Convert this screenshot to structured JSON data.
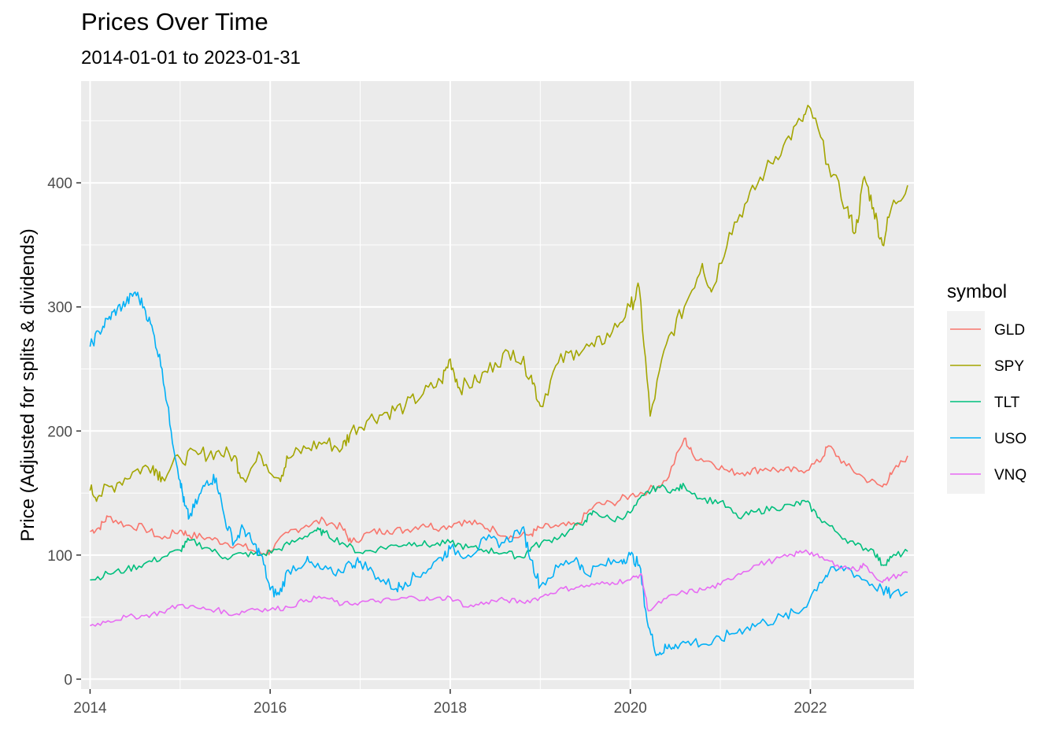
{
  "chart_data": {
    "type": "line",
    "title": "Prices Over Time",
    "subtitle": "2014-01-01 to 2023-01-31",
    "xlabel": "",
    "ylabel": "Price (Adjusted for splits & dividends)",
    "xlim": [
      2013.9,
      2023.15
    ],
    "ylim": [
      -8,
      482
    ],
    "x_ticks": [
      2014,
      2016,
      2018,
      2020,
      2022
    ],
    "y_ticks": [
      0,
      100,
      200,
      300,
      400
    ],
    "grid": true,
    "legend": {
      "title": "symbol",
      "placement": "right"
    },
    "series": [
      {
        "name": "GLD",
        "color": "#F8766D",
        "x": [
          2014.0,
          2014.1,
          2014.2,
          2014.4,
          2014.6,
          2014.8,
          2015.0,
          2015.1,
          2015.3,
          2015.5,
          2015.7,
          2015.9,
          2016.0,
          2016.2,
          2016.4,
          2016.6,
          2016.8,
          2016.9,
          2017.1,
          2017.3,
          2017.5,
          2017.7,
          2017.9,
          2018.1,
          2018.3,
          2018.5,
          2018.7,
          2018.9,
          2019.0,
          2019.2,
          2019.4,
          2019.6,
          2019.8,
          2020.0,
          2020.2,
          2020.4,
          2020.6,
          2020.7,
          2020.9,
          2021.1,
          2021.3,
          2021.5,
          2021.7,
          2021.9,
          2022.1,
          2022.2,
          2022.4,
          2022.6,
          2022.8,
          2022.9,
          2023.08
        ],
        "y": [
          119,
          122,
          131,
          124,
          122,
          113,
          120,
          116,
          114,
          110,
          107,
          101,
          103,
          118,
          124,
          128,
          122,
          110,
          118,
          120,
          120,
          125,
          122,
          127,
          125,
          120,
          114,
          117,
          122,
          123,
          124,
          140,
          142,
          148,
          152,
          160,
          194,
          180,
          175,
          167,
          167,
          170,
          168,
          168,
          175,
          188,
          172,
          162,
          155,
          165,
          180
        ]
      },
      {
        "name": "SPY",
        "color": "#A3A500",
        "x": [
          2014.0,
          2014.1,
          2014.3,
          2014.5,
          2014.7,
          2014.8,
          2015.0,
          2015.2,
          2015.4,
          2015.6,
          2015.7,
          2015.9,
          2016.1,
          2016.2,
          2016.4,
          2016.6,
          2016.8,
          2016.9,
          2017.1,
          2017.3,
          2017.5,
          2017.7,
          2017.9,
          2018.0,
          2018.1,
          2018.3,
          2018.5,
          2018.7,
          2018.9,
          2019.0,
          2019.2,
          2019.4,
          2019.6,
          2019.8,
          2020.0,
          2020.1,
          2020.22,
          2020.4,
          2020.6,
          2020.8,
          2020.9,
          2021.1,
          2021.3,
          2021.5,
          2021.7,
          2021.9,
          2022.0,
          2022.2,
          2022.4,
          2022.5,
          2022.6,
          2022.7,
          2022.8,
          2022.9,
          2023.08
        ],
        "y": [
          152,
          148,
          158,
          168,
          172,
          163,
          178,
          181,
          183,
          180,
          162,
          180,
          162,
          178,
          186,
          191,
          186,
          200,
          210,
          215,
          220,
          230,
          240,
          258,
          235,
          240,
          255,
          265,
          245,
          220,
          255,
          265,
          268,
          280,
          300,
          315,
          212,
          270,
          300,
          335,
          312,
          360,
          385,
          410,
          430,
          450,
          460,
          415,
          380,
          360,
          405,
          380,
          350,
          380,
          398
        ]
      },
      {
        "name": "TLT",
        "color": "#00BF7D",
        "x": [
          2014.0,
          2014.2,
          2014.4,
          2014.6,
          2014.8,
          2015.0,
          2015.1,
          2015.3,
          2015.5,
          2015.7,
          2015.9,
          2016.1,
          2016.3,
          2016.5,
          2016.6,
          2016.8,
          2017.0,
          2017.2,
          2017.4,
          2017.6,
          2017.8,
          2018.0,
          2018.2,
          2018.4,
          2018.6,
          2018.8,
          2018.9,
          2019.1,
          2019.3,
          2019.5,
          2019.6,
          2019.8,
          2020.0,
          2020.15,
          2020.3,
          2020.5,
          2020.6,
          2020.8,
          2021.0,
          2021.2,
          2021.4,
          2021.6,
          2021.8,
          2021.95,
          2022.1,
          2022.3,
          2022.5,
          2022.7,
          2022.8,
          2022.9,
          2023.08
        ],
        "y": [
          80,
          85,
          88,
          93,
          98,
          104,
          112,
          106,
          98,
          101,
          100,
          105,
          112,
          120,
          118,
          110,
          102,
          105,
          108,
          110,
          108,
          110,
          106,
          104,
          102,
          98,
          106,
          112,
          118,
          128,
          135,
          128,
          134,
          148,
          155,
          152,
          156,
          145,
          143,
          130,
          135,
          138,
          140,
          143,
          130,
          118,
          108,
          104,
          92,
          98,
          103
        ]
      },
      {
        "name": "USO",
        "color": "#00B0F6",
        "x": [
          2014.0,
          2014.1,
          2014.2,
          2014.3,
          2014.4,
          2014.5,
          2014.6,
          2014.7,
          2014.8,
          2014.9,
          2015.0,
          2015.05,
          2015.1,
          2015.2,
          2015.3,
          2015.4,
          2015.5,
          2015.6,
          2015.7,
          2015.8,
          2015.9,
          2016.0,
          2016.1,
          2016.2,
          2016.4,
          2016.5,
          2016.7,
          2016.9,
          2017.0,
          2017.2,
          2017.4,
          2017.5,
          2017.7,
          2017.9,
          2018.0,
          2018.2,
          2018.4,
          2018.6,
          2018.8,
          2018.9,
          2019.0,
          2019.2,
          2019.4,
          2019.5,
          2019.7,
          2019.9,
          2020.0,
          2020.1,
          2020.2,
          2020.3,
          2020.4,
          2020.5,
          2020.7,
          2020.9,
          2021.1,
          2021.3,
          2021.5,
          2021.7,
          2021.9,
          2022.1,
          2022.2,
          2022.4,
          2022.6,
          2022.8,
          2022.9,
          2023.08
        ],
        "y": [
          268,
          280,
          290,
          298,
          303,
          312,
          300,
          280,
          250,
          200,
          160,
          140,
          130,
          145,
          160,
          162,
          128,
          110,
          122,
          110,
          100,
          72,
          68,
          88,
          95,
          90,
          85,
          93,
          95,
          82,
          73,
          78,
          86,
          98,
          105,
          100,
          112,
          110,
          122,
          96,
          75,
          90,
          98,
          85,
          92,
          96,
          100,
          92,
          42,
          20,
          25,
          28,
          30,
          28,
          36,
          42,
          46,
          50,
          55,
          78,
          85,
          90,
          80,
          72,
          68,
          70
        ]
      },
      {
        "name": "VNQ",
        "color": "#E76BF3",
        "x": [
          2014.0,
          2014.2,
          2014.4,
          2014.6,
          2014.8,
          2015.0,
          2015.2,
          2015.4,
          2015.6,
          2015.8,
          2016.0,
          2016.2,
          2016.4,
          2016.6,
          2016.8,
          2017.0,
          2017.2,
          2017.4,
          2017.6,
          2017.8,
          2018.0,
          2018.2,
          2018.4,
          2018.6,
          2018.8,
          2019.0,
          2019.2,
          2019.4,
          2019.6,
          2019.8,
          2020.0,
          2020.12,
          2020.2,
          2020.4,
          2020.6,
          2020.8,
          2021.0,
          2021.2,
          2021.4,
          2021.6,
          2021.8,
          2021.95,
          2022.1,
          2022.3,
          2022.5,
          2022.6,
          2022.8,
          2022.9,
          2023.08
        ],
        "y": [
          43,
          47,
          50,
          51,
          54,
          60,
          57,
          56,
          52,
          57,
          56,
          58,
          64,
          66,
          60,
          62,
          63,
          64,
          66,
          64,
          66,
          58,
          62,
          64,
          62,
          66,
          72,
          74,
          76,
          78,
          80,
          85,
          55,
          65,
          70,
          72,
          76,
          85,
          92,
          96,
          100,
          104,
          98,
          92,
          88,
          92,
          78,
          82,
          86
        ]
      }
    ]
  }
}
